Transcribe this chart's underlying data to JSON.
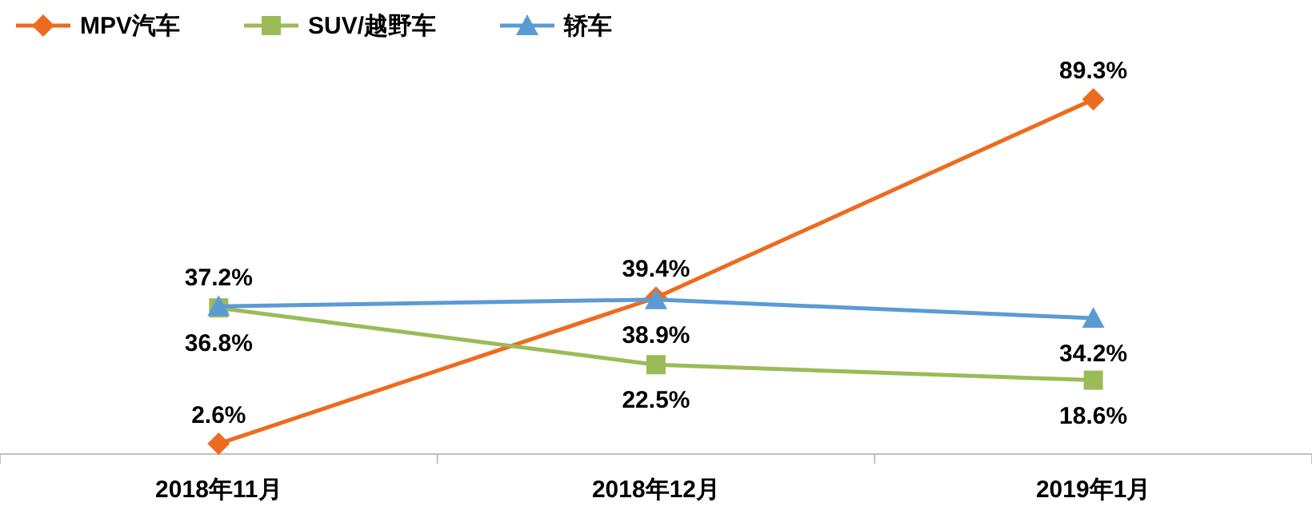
{
  "chart_data": {
    "type": "line",
    "categories": [
      "2018年11月",
      "2018年12月",
      "2019年1月"
    ],
    "series": [
      {
        "name": "MPV汽车",
        "color": "#ed6b1f",
        "marker": "diamond",
        "values": [
          2.6,
          39.4,
          89.3
        ],
        "value_labels": [
          "2.6%",
          "39.4%",
          "89.3%"
        ]
      },
      {
        "name": "SUV/越野车",
        "color": "#9bbb59",
        "marker": "square",
        "values": [
          36.8,
          22.5,
          18.6
        ],
        "value_labels": [
          "36.8%",
          "22.5%",
          "18.6%"
        ]
      },
      {
        "name": "轿车",
        "color": "#5b9bd5",
        "marker": "triangle",
        "values": [
          37.2,
          38.9,
          34.2
        ],
        "value_labels": [
          "37.2%",
          "38.9%",
          "34.2%"
        ]
      }
    ],
    "legend": "top left"
  }
}
